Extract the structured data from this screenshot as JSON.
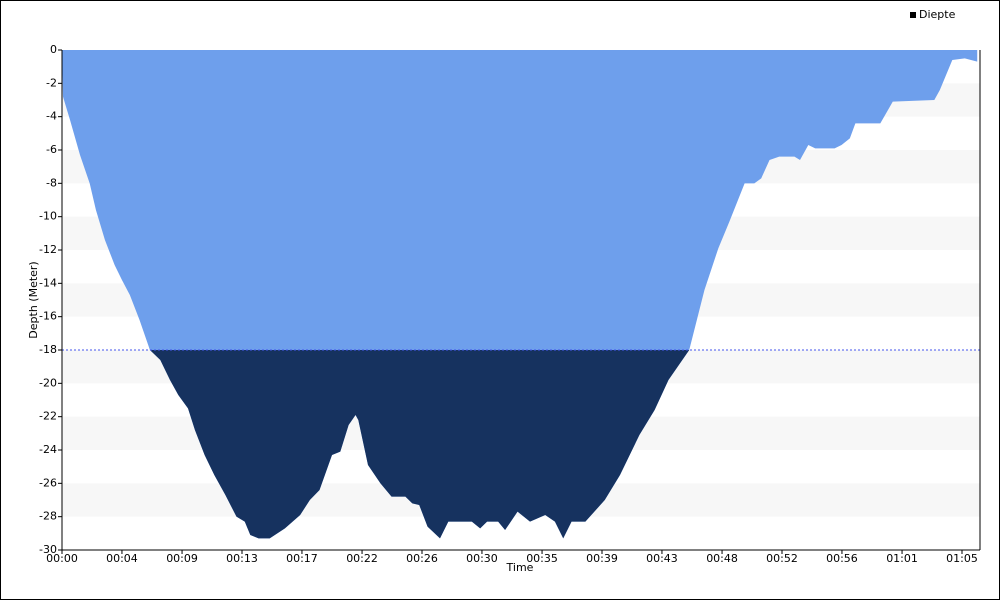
{
  "chart_data": {
    "type": "area",
    "x_label": "Time",
    "y_label": "Depth (Meter)",
    "x": [
      0,
      0.07,
      0.58,
      1.3,
      2.0,
      2.45,
      3.1,
      3.8,
      4.33,
      4.9,
      5.6,
      6.35,
      7.1,
      7.8,
      8.4,
      9.1,
      9.6,
      10.3,
      11.0,
      11.8,
      12.6,
      13.2,
      13.6,
      14.2,
      15.0,
      16.1,
      17.2,
      17.9,
      18.6,
      19.5,
      20.1,
      20.7,
      21.2,
      21.4,
      22.1,
      23.0,
      23.8,
      24.8,
      25.3,
      25.8,
      26.4,
      27.3,
      27.9,
      29.6,
      30.2,
      30.7,
      31.5,
      32.0,
      32.9,
      33.8,
      34.9,
      35.6,
      36.2,
      36.8,
      37.8,
      39.2,
      40.3,
      41.7,
      42.8,
      43.8,
      45.3,
      46.4,
      47.4,
      48.2,
      49.3,
      50.0,
      50.5,
      51.1,
      51.8,
      52.9,
      53.3,
      53.9,
      54.4,
      55.8,
      56.3,
      56.9,
      57.3,
      59.1,
      60.0,
      63.0,
      63.4,
      64.3,
      65.2,
      66.1
    ],
    "series": [
      {
        "name": "Diepte",
        "color": "#6e9fec",
        "color_below": "#16325f",
        "values": [
          0,
          -2.8,
          -4.2,
          -6.3,
          -8,
          -9.6,
          -11.4,
          -12.9,
          -13.8,
          -14.7,
          -16.2,
          -18,
          -18.6,
          -19.8,
          -20.7,
          -21.5,
          -22.8,
          -24.3,
          -25.5,
          -26.7,
          -28,
          -28.3,
          -29.1,
          -29.3,
          -29.3,
          -28.7,
          -27.9,
          -27,
          -26.4,
          -24.3,
          -24.1,
          -22.5,
          -21.9,
          -22.2,
          -24.9,
          -26,
          -26.8,
          -26.8,
          -27.2,
          -27.3,
          -28.6,
          -29.3,
          -28.3,
          -28.3,
          -28.7,
          -28.3,
          -28.3,
          -28.8,
          -27.7,
          -28.3,
          -27.9,
          -28.3,
          -29.3,
          -28.3,
          -28.3,
          -27,
          -25.5,
          -23.1,
          -21.6,
          -19.8,
          -18,
          -14.4,
          -11.9,
          -10.3,
          -8,
          -8,
          -7.7,
          -6.6,
          -6.4,
          -6.4,
          -6.6,
          -5.7,
          -5.9,
          -5.9,
          -5.7,
          -5.3,
          -4.4,
          -4.4,
          -3.1,
          -3,
          -2.4,
          -0.6,
          -0.5,
          -0.7
        ]
      }
    ],
    "threshold": -18,
    "xlim": [
      0,
      66.3
    ],
    "xticks": [
      {
        "value": 0,
        "label": "00:00"
      },
      {
        "value": 4.33,
        "label": "00:04"
      },
      {
        "value": 8.67,
        "label": "00:09"
      },
      {
        "value": 13,
        "label": "00:13"
      },
      {
        "value": 17.33,
        "label": "00:17"
      },
      {
        "value": 21.67,
        "label": "00:22"
      },
      {
        "value": 26,
        "label": "00:26"
      },
      {
        "value": 30.33,
        "label": "00:30"
      },
      {
        "value": 34.67,
        "label": "00:35"
      },
      {
        "value": 39,
        "label": "00:39"
      },
      {
        "value": 43.33,
        "label": "00:43"
      },
      {
        "value": 47.67,
        "label": "00:48"
      },
      {
        "value": 52,
        "label": "00:52"
      },
      {
        "value": 56.33,
        "label": "00:56"
      },
      {
        "value": 60.67,
        "label": "01:01"
      },
      {
        "value": 65,
        "label": "01:05"
      }
    ],
    "ylim": [
      -30,
      0
    ],
    "yticks": [
      0,
      -2,
      -4,
      -6,
      -8,
      -10,
      -12,
      -14,
      -16,
      -18,
      -20,
      -22,
      -24,
      -26,
      -28,
      -30
    ],
    "legend": "top-right"
  }
}
